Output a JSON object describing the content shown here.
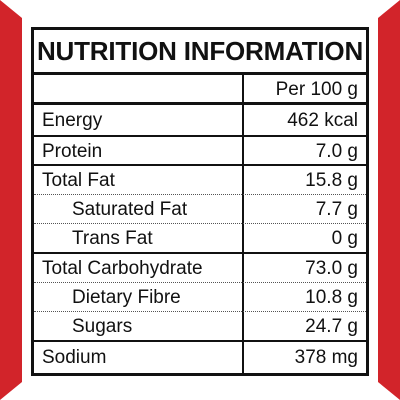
{
  "title": "NUTRITION INFORMATION",
  "column_header": "Per 100 g",
  "rows": [
    {
      "label": "Energy",
      "value": "462 kcal"
    },
    {
      "label": "Protein",
      "value": "7.0 g"
    },
    {
      "label": "Total Fat",
      "value": "15.8 g"
    },
    {
      "label": "Saturated Fat",
      "value": "7.7 g"
    },
    {
      "label": "Trans Fat",
      "value": "0 g"
    },
    {
      "label": "Total Carbohydrate",
      "value": "73.0 g"
    },
    {
      "label": "Dietary Fibre",
      "value": "10.8 g"
    },
    {
      "label": "Sugars",
      "value": "24.7 g"
    },
    {
      "label": "Sodium",
      "value": "378 mg"
    }
  ],
  "colors": {
    "border_red": "#d2242a",
    "text": "#111111",
    "background": "#ffffff"
  }
}
